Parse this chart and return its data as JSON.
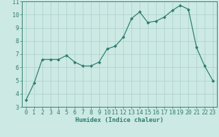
{
  "x": [
    0,
    1,
    2,
    3,
    4,
    5,
    6,
    7,
    8,
    9,
    10,
    11,
    12,
    13,
    14,
    15,
    16,
    17,
    18,
    19,
    20,
    21,
    22,
    23
  ],
  "y": [
    3.5,
    4.8,
    6.6,
    6.6,
    6.6,
    6.9,
    6.4,
    6.1,
    6.1,
    6.4,
    7.4,
    7.6,
    8.3,
    9.7,
    10.2,
    9.4,
    9.5,
    9.8,
    10.3,
    10.7,
    10.4,
    7.5,
    6.1,
    5.0
  ],
  "line_color": "#2e7d6e",
  "marker": "D",
  "marker_size": 2.0,
  "bg_color": "#cce9e4",
  "grid_color": "#aacfc9",
  "xlabel": "Humidex (Indice chaleur)",
  "xlim": [
    -0.5,
    23.5
  ],
  "ylim": [
    3,
    11
  ],
  "yticks": [
    3,
    4,
    5,
    6,
    7,
    8,
    9,
    10,
    11
  ],
  "xticks": [
    0,
    1,
    2,
    3,
    4,
    5,
    6,
    7,
    8,
    9,
    10,
    11,
    12,
    13,
    14,
    15,
    16,
    17,
    18,
    19,
    20,
    21,
    22,
    23
  ],
  "label_fontsize": 6.5,
  "tick_fontsize": 6.0
}
